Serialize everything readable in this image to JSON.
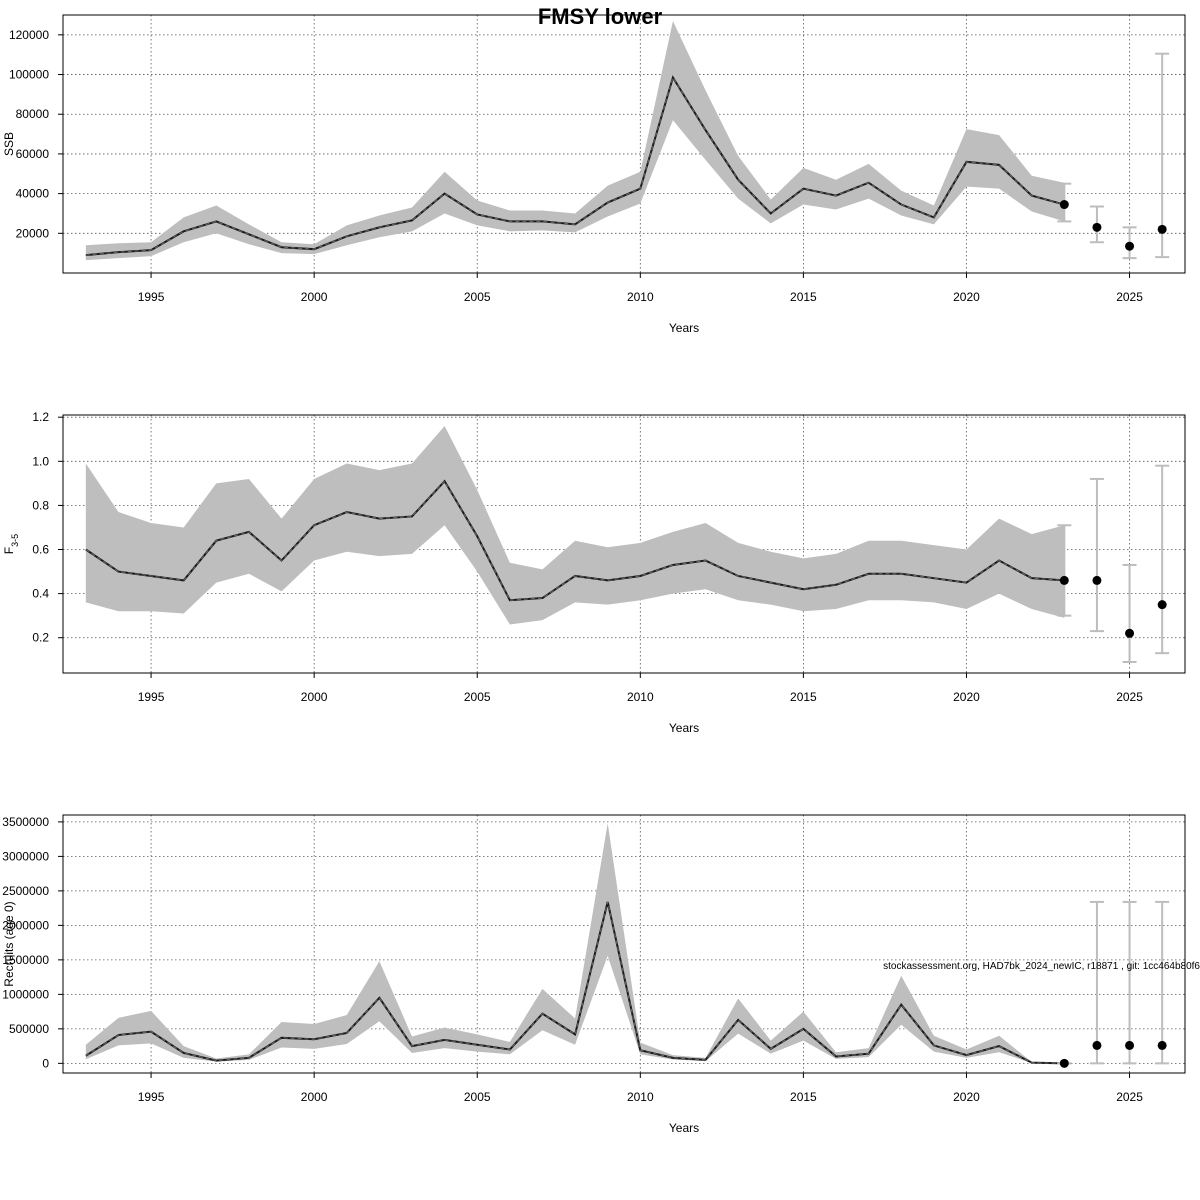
{
  "title": "FMSY lower",
  "footnote": "stockassessment.org, HAD7bk_2024_newIC, r18871 , git: 1cc464b80f6",
  "colors": {
    "band": "#bebebe",
    "line": "#1a1a1a",
    "point": "#000000",
    "errorbar": "#bdbdbd",
    "grid": "#555555"
  },
  "chart_data": [
    {
      "type": "line",
      "title": "",
      "xlabel": "Years",
      "ylabel": "SSB",
      "ylim": [
        0,
        130000
      ],
      "yticks": [
        20000,
        40000,
        60000,
        80000,
        100000,
        120000
      ],
      "xlim": [
        1992.3,
        2026.7
      ],
      "xticks": [
        1995,
        2000,
        2005,
        2010,
        2015,
        2020,
        2025
      ],
      "grid": true,
      "x": [
        1993,
        1994,
        1995,
        1996,
        1997,
        1998,
        1999,
        2000,
        2001,
        2002,
        2003,
        2004,
        2005,
        2006,
        2007,
        2008,
        2009,
        2010,
        2011,
        2012,
        2013,
        2014,
        2015,
        2016,
        2017,
        2018,
        2019,
        2020,
        2021,
        2022,
        2023
      ],
      "estimate": [
        9000,
        10500,
        11500,
        21000,
        26000,
        19500,
        13000,
        12000,
        18500,
        23000,
        26500,
        40000,
        29500,
        26000,
        26000,
        24500,
        35500,
        42500,
        98500,
        72000,
        47000,
        30000,
        42500,
        39000,
        45500,
        34500,
        28000,
        56000,
        54500,
        39000,
        34500
      ],
      "lower": [
        6500,
        7500,
        8500,
        15500,
        20000,
        14500,
        10000,
        9500,
        14000,
        18000,
        21000,
        30000,
        24000,
        21000,
        21500,
        20500,
        28500,
        35000,
        77000,
        57000,
        37500,
        25000,
        34500,
        32000,
        37500,
        29000,
        24500,
        43500,
        42500,
        31000,
        26000
      ],
      "upper": [
        14000,
        15000,
        15500,
        28000,
        34000,
        24500,
        15500,
        14500,
        24000,
        29000,
        33000,
        51000,
        36500,
        31500,
        31500,
        30000,
        44000,
        51000,
        127000,
        92000,
        59000,
        37000,
        53000,
        47000,
        55000,
        41500,
        34000,
        72500,
        69500,
        49000,
        45500
      ],
      "forecast": {
        "x": [
          2023,
          2024,
          2025,
          2026
        ],
        "median": [
          34500,
          23000,
          13500,
          22000
        ],
        "lower": [
          26000,
          15500,
          7500,
          8000
        ],
        "upper": [
          45000,
          33500,
          23000,
          110500
        ]
      }
    },
    {
      "type": "line",
      "title": "",
      "xlabel": "Years",
      "ylabel": "F",
      "ylabel_sub": "3-5",
      "ylim": [
        0.04,
        1.21
      ],
      "yticks": [
        0.2,
        0.4,
        0.6,
        0.8,
        1.0,
        1.2
      ],
      "ytick_labels": [
        "0.2",
        "0.4",
        "0.6",
        "0.8",
        "1.0",
        "1.2"
      ],
      "xlim": [
        1992.3,
        2026.7
      ],
      "xticks": [
        1995,
        2000,
        2005,
        2010,
        2015,
        2020,
        2025
      ],
      "grid": true,
      "x": [
        1993,
        1994,
        1995,
        1996,
        1997,
        1998,
        1999,
        2000,
        2001,
        2002,
        2003,
        2004,
        2005,
        2006,
        2007,
        2008,
        2009,
        2010,
        2011,
        2012,
        2013,
        2014,
        2015,
        2016,
        2017,
        2018,
        2019,
        2020,
        2021,
        2022,
        2023
      ],
      "estimate": [
        0.6,
        0.5,
        0.48,
        0.46,
        0.64,
        0.68,
        0.55,
        0.71,
        0.77,
        0.74,
        0.75,
        0.91,
        0.66,
        0.37,
        0.38,
        0.48,
        0.46,
        0.48,
        0.53,
        0.55,
        0.48,
        0.45,
        0.42,
        0.44,
        0.49,
        0.49,
        0.47,
        0.45,
        0.55,
        0.47,
        0.46
      ],
      "lower": [
        0.36,
        0.32,
        0.32,
        0.31,
        0.45,
        0.49,
        0.41,
        0.55,
        0.59,
        0.57,
        0.58,
        0.71,
        0.5,
        0.26,
        0.28,
        0.36,
        0.35,
        0.37,
        0.4,
        0.42,
        0.37,
        0.35,
        0.32,
        0.33,
        0.37,
        0.37,
        0.36,
        0.33,
        0.4,
        0.33,
        0.29
      ],
      "upper": [
        0.99,
        0.77,
        0.72,
        0.7,
        0.9,
        0.92,
        0.74,
        0.92,
        0.99,
        0.96,
        0.99,
        1.16,
        0.87,
        0.54,
        0.51,
        0.64,
        0.61,
        0.63,
        0.68,
        0.72,
        0.63,
        0.59,
        0.56,
        0.58,
        0.64,
        0.64,
        0.62,
        0.6,
        0.74,
        0.67,
        0.71
      ],
      "forecast": {
        "x": [
          2023,
          2024,
          2025,
          2026
        ],
        "median": [
          0.46,
          0.46,
          0.22,
          0.35
        ],
        "lower": [
          0.3,
          0.23,
          0.09,
          0.13
        ],
        "upper": [
          0.71,
          0.92,
          0.53,
          0.98
        ]
      }
    },
    {
      "type": "line",
      "title": "",
      "xlabel": "Years",
      "ylabel": "Recruits (age 0)",
      "ylim": [
        -140000,
        3600000
      ],
      "yticks": [
        0,
        500000,
        1000000,
        1500000,
        2000000,
        2500000,
        3000000,
        3500000
      ],
      "xlim": [
        1992.3,
        2026.7
      ],
      "xticks": [
        1995,
        2000,
        2005,
        2010,
        2015,
        2020,
        2025
      ],
      "grid": true,
      "x": [
        1993,
        1994,
        1995,
        1996,
        1997,
        1998,
        1999,
        2000,
        2001,
        2002,
        2003,
        2004,
        2005,
        2006,
        2007,
        2008,
        2009,
        2010,
        2011,
        2012,
        2013,
        2014,
        2015,
        2016,
        2017,
        2018,
        2019,
        2020,
        2021,
        2022,
        2023
      ],
      "estimate": [
        110000,
        410000,
        460000,
        150000,
        40000,
        80000,
        370000,
        350000,
        440000,
        950000,
        250000,
        340000,
        270000,
        200000,
        720000,
        420000,
        2340000,
        190000,
        80000,
        50000,
        630000,
        210000,
        500000,
        100000,
        140000,
        850000,
        260000,
        120000,
        250000,
        10000,
        0
      ],
      "lower": [
        60000,
        260000,
        290000,
        80000,
        25000,
        50000,
        230000,
        210000,
        280000,
        610000,
        150000,
        220000,
        170000,
        130000,
        480000,
        270000,
        1560000,
        130000,
        55000,
        30000,
        430000,
        140000,
        330000,
        65000,
        90000,
        560000,
        170000,
        80000,
        160000,
        5000,
        0
      ],
      "upper": [
        270000,
        660000,
        760000,
        250000,
        70000,
        130000,
        600000,
        570000,
        700000,
        1480000,
        390000,
        520000,
        420000,
        310000,
        1080000,
        650000,
        3480000,
        300000,
        120000,
        80000,
        940000,
        330000,
        750000,
        160000,
        220000,
        1270000,
        400000,
        200000,
        400000,
        20000,
        0
      ],
      "forecast": {
        "x": [
          2023,
          2024,
          2025,
          2026
        ],
        "median": [
          0,
          260000,
          260000,
          260000
        ],
        "lower": [
          0,
          0,
          0,
          0
        ],
        "upper": [
          0,
          2340000,
          2340000,
          2340000
        ]
      }
    }
  ]
}
